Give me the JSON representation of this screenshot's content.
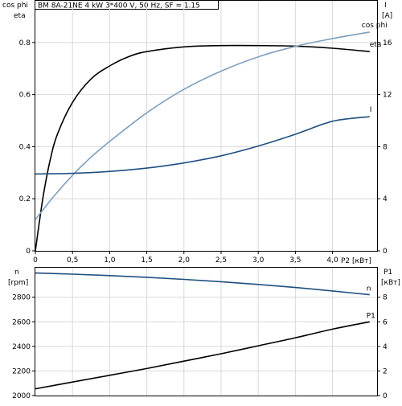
{
  "chart_data": [
    {
      "type": "line",
      "title": "BM 8A-21NE   4  kW   3*400  V, 50 Hz, SF = 1.15",
      "left_axis_labels": [
        "cos phi",
        "eta"
      ],
      "right_axis_labels": [
        "I",
        "[A]"
      ],
      "x_axis_label": "P2 [кВт]",
      "x_ticks": [
        "0",
        "0,5",
        "1,0",
        "1,5",
        "2,0",
        "2,5",
        "3,0",
        "3,5",
        "4,0"
      ],
      "x_tick_values": [
        0,
        0.5,
        1.0,
        1.5,
        2.0,
        2.5,
        3.0,
        3.5,
        4.0
      ],
      "xlim": [
        0,
        4.6
      ],
      "left_ylim": [
        0,
        0.96
      ],
      "left_ticks": [
        0,
        0.2,
        0.4,
        0.6,
        0.8
      ],
      "left_tick_labels": [
        "0",
        "0.2",
        "0.4",
        "0.6",
        "0.8"
      ],
      "right_ylim": [
        0,
        19.2
      ],
      "right_ticks": [
        0,
        4,
        8,
        12,
        16
      ],
      "right_tick_labels": [
        "0",
        "4",
        "8",
        "12",
        "16"
      ],
      "grid": true,
      "series": [
        {
          "name": "eta",
          "axis": "left",
          "color": "#000000",
          "x": [
            0,
            0.1,
            0.2,
            0.3,
            0.5,
            0.75,
            1.0,
            1.25,
            1.5,
            2.0,
            2.5,
            3.0,
            3.5,
            4.0,
            4.5
          ],
          "y": [
            0,
            0.2,
            0.35,
            0.45,
            0.57,
            0.66,
            0.71,
            0.745,
            0.765,
            0.783,
            0.788,
            0.788,
            0.786,
            0.778,
            0.765
          ]
        },
        {
          "name": "cos phi",
          "axis": "left",
          "color": "#7f9fbf",
          "x": [
            0,
            0.25,
            0.5,
            0.75,
            1.0,
            1.5,
            2.0,
            2.5,
            3.0,
            3.5,
            4.0,
            4.5
          ],
          "y": [
            0.12,
            0.21,
            0.29,
            0.36,
            0.42,
            0.53,
            0.62,
            0.69,
            0.745,
            0.785,
            0.815,
            0.84
          ]
        },
        {
          "name": "I",
          "axis": "right",
          "color": "#1f4f7f",
          "x": [
            0,
            0.5,
            1.0,
            1.5,
            2.0,
            2.5,
            3.0,
            3.5,
            4.0,
            4.5
          ],
          "y": [
            5.9,
            5.95,
            6.1,
            6.35,
            6.75,
            7.3,
            8.05,
            8.95,
            9.95,
            10.3
          ]
        }
      ]
    },
    {
      "type": "line",
      "left_axis_labels": [
        "n",
        "[rpm]"
      ],
      "right_axis_labels": [
        "P1",
        "[кВт]"
      ],
      "left_ylim": [
        2000,
        3040
      ],
      "left_ticks": [
        2000,
        2200,
        2400,
        2600,
        2800
      ],
      "left_tick_labels": [
        "2000",
        "2200",
        "2400",
        "2600",
        "2800"
      ],
      "right_ylim": [
        0,
        10.4
      ],
      "right_ticks": [
        0,
        2,
        4,
        6,
        8
      ],
      "right_tick_labels": [
        "0",
        "2",
        "4",
        "6",
        "8"
      ],
      "xlim": [
        0,
        4.6
      ],
      "x_tick_values": [
        0,
        0.5,
        1.0,
        1.5,
        2.0,
        2.5,
        3.0,
        3.5,
        4.0
      ],
      "grid": true,
      "series": [
        {
          "name": "n",
          "axis": "left",
          "color": "#1f4f7f",
          "x": [
            0,
            0.5,
            1.0,
            1.5,
            2.0,
            2.5,
            3.0,
            3.5,
            4.0,
            4.5
          ],
          "y": [
            2997,
            2988,
            2976,
            2962,
            2945,
            2926,
            2904,
            2879,
            2851,
            2820
          ]
        },
        {
          "name": "P1",
          "axis": "right",
          "color": "#000000",
          "x": [
            0,
            0.5,
            1.0,
            1.5,
            2.0,
            2.5,
            3.0,
            3.5,
            4.0,
            4.5
          ],
          "y": [
            0.55,
            1.1,
            1.65,
            2.2,
            2.8,
            3.4,
            4.05,
            4.7,
            5.4,
            6.0
          ]
        }
      ]
    }
  ]
}
